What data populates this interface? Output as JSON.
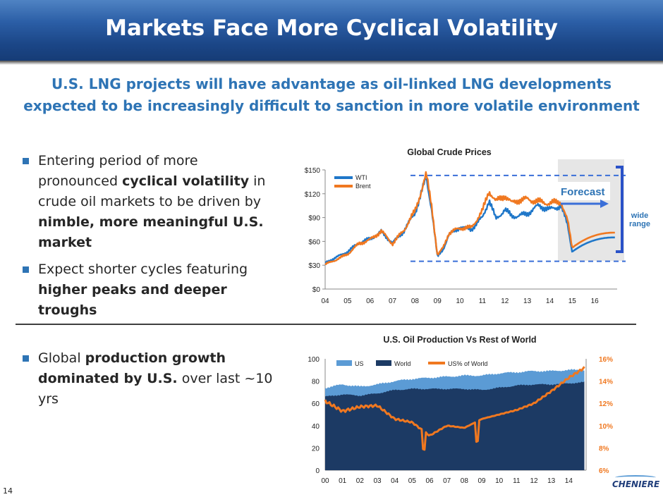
{
  "header": {
    "title": "Markets Face More Cyclical Volatility"
  },
  "subtitle": "U.S. LNG projects will have advantage as oil-linked LNG developments expected to be increasingly difficult to sanction in more volatile environment",
  "bullets_top": [
    {
      "pre": "Entering period of more pronounced ",
      "b1": "cyclical volatility",
      "mid": " in crude oil markets to be driven by ",
      "b2": "nimble, more meaningful U.S. market"
    },
    {
      "pre": "Expect shorter cycles featuring ",
      "b1": "higher peaks and deeper troughs"
    }
  ],
  "bullets_bottom": [
    {
      "pre": "Global ",
      "b1": "production growth dominated by U.S.",
      "post": " over last ~10 yrs"
    }
  ],
  "page_number": "14",
  "logo_text": "CHENIERE",
  "colors": {
    "wti": "#1f77c9",
    "brent": "#f07820",
    "world": "#1c3a64",
    "us": "#5b9bd5",
    "us_pct": "#f07820",
    "title_bar": "#1b4687",
    "accent": "#2e74b5"
  },
  "chart_data": [
    {
      "type": "line",
      "title": "Global Crude Prices",
      "x_ticks": [
        "04",
        "05",
        "06",
        "07",
        "08",
        "09",
        "10",
        "11",
        "12",
        "13",
        "14",
        "15",
        "16"
      ],
      "y_ticks": [
        "$0",
        "$30",
        "$60",
        "$90",
        "$120",
        "$150"
      ],
      "ylim": [
        0,
        150
      ],
      "xlim": [
        2004,
        2017
      ],
      "grid": false,
      "legend_position": "top-left",
      "x": [
        2004.0,
        2004.5,
        2005.0,
        2005.5,
        2006.0,
        2006.5,
        2007.0,
        2007.5,
        2008.0,
        2008.5,
        2008.75,
        2009.0,
        2009.25,
        2009.5,
        2010.0,
        2010.5,
        2011.0,
        2011.3,
        2011.6,
        2012.0,
        2012.3,
        2012.6,
        2013.0,
        2013.5,
        2014.0,
        2014.5,
        2014.8,
        2015.0
      ],
      "series": [
        {
          "name": "WTI",
          "values": [
            33,
            40,
            47,
            58,
            63,
            72,
            58,
            73,
            96,
            140,
            100,
            40,
            50,
            68,
            78,
            75,
            90,
            112,
            88,
            100,
            92,
            92,
            95,
            105,
            100,
            105,
            80,
            47
          ]
        },
        {
          "name": "Brent",
          "values": [
            31,
            37,
            44,
            57,
            62,
            73,
            57,
            74,
            98,
            144,
            104,
            42,
            52,
            70,
            77,
            77,
            98,
            124,
            110,
            118,
            108,
            112,
            113,
            110,
            108,
            110,
            85,
            52
          ]
        }
      ],
      "forecast": {
        "label": "Forecast",
        "range_label": "wide range",
        "start": 2015.0,
        "end": 2016.9,
        "lower": [
          47,
          55,
          60,
          63,
          65
        ],
        "upper": [
          52,
          60,
          65,
          68,
          71
        ],
        "band_high": 143,
        "band_low": 35
      }
    },
    {
      "type": "area",
      "title": "U.S. Oil Production Vs Rest of World",
      "x_ticks": [
        "00",
        "01",
        "02",
        "03",
        "04",
        "05",
        "06",
        "07",
        "08",
        "09",
        "10",
        "11",
        "12",
        "13",
        "14"
      ],
      "y_ticks": [
        "0",
        "20",
        "40",
        "60",
        "80",
        "100"
      ],
      "y2_ticks": [
        "6%",
        "8%",
        "10%",
        "12%",
        "14%",
        "16%"
      ],
      "ylim": [
        0,
        100
      ],
      "y2lim": [
        6,
        16
      ],
      "xlim": [
        2000,
        2015
      ],
      "legend_position": "top-left",
      "x": [
        2000,
        2001,
        2002,
        2003,
        2004,
        2005,
        2006,
        2007,
        2008,
        2009,
        2010,
        2011,
        2012,
        2013,
        2014,
        2014.9
      ],
      "series": [
        {
          "name": "US",
          "values": [
            74,
            77,
            75,
            77,
            80,
            82,
            83,
            84,
            85,
            85,
            87,
            88,
            89,
            89,
            90,
            90
          ]
        },
        {
          "name": "World",
          "values": [
            66,
            68,
            67,
            69,
            72,
            73,
            73,
            73,
            73,
            72,
            74,
            76,
            77,
            77,
            78,
            79
          ]
        },
        {
          "name": "US% of World",
          "values": [
            12.2,
            11.3,
            11.7,
            11.8,
            10.6,
            10.3,
            9.1,
            10.0,
            9.8,
            10.6,
            11.0,
            11.4,
            12.0,
            13.1,
            14.3,
            15.2
          ]
        }
      ]
    }
  ]
}
